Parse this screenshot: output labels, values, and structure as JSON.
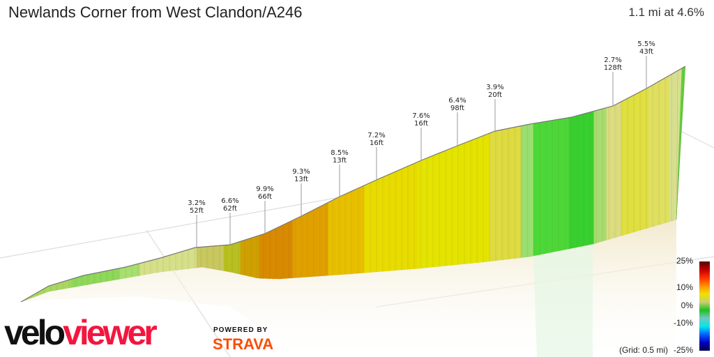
{
  "title": "Newlands Corner from West Clandon/A246",
  "summary": "1.1 mi at 4.6%",
  "annotations": [
    {
      "grade": "3.2%",
      "length": "52ft"
    },
    {
      "grade": "6.6%",
      "length": "62ft"
    },
    {
      "grade": "9.9%",
      "length": "66ft"
    },
    {
      "grade": "9.3%",
      "length": "13ft"
    },
    {
      "grade": "8.5%",
      "length": "13ft"
    },
    {
      "grade": "7.2%",
      "length": "16ft"
    },
    {
      "grade": "7.6%",
      "length": "16ft"
    },
    {
      "grade": "6.4%",
      "length": "98ft"
    },
    {
      "grade": "3.9%",
      "length": "20ft"
    },
    {
      "grade": "2.7%",
      "length": "128ft"
    },
    {
      "grade": "5.5%",
      "length": "43ft"
    }
  ],
  "legend": {
    "ticks": [
      "25%",
      "10%",
      "0%",
      "-10%",
      "-25%"
    ],
    "grid": "(Grid: 0.5 mi)",
    "colors": [
      "#5a0000",
      "#c00000",
      "#ff3000",
      "#ff9000",
      "#f0e000",
      "#c8d070",
      "#20c020",
      "#70c8c0",
      "#00e8e8",
      "#0060ff",
      "#0000c0",
      "#000050"
    ]
  },
  "branding": {
    "logo_a": "velo",
    "logo_b": "viewer",
    "powered_by": "POWERED BY",
    "strava": "STRAVA"
  }
}
